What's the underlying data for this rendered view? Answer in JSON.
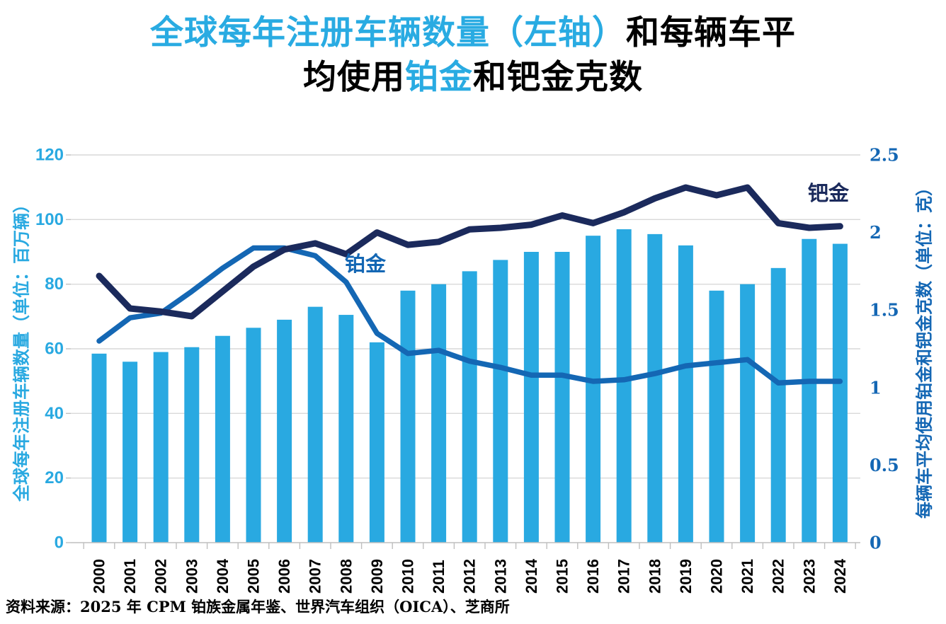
{
  "title": {
    "line1": [
      {
        "text": "全球每年注册车辆数量（左轴）",
        "color": "accent"
      },
      {
        "text": "和每辆车平",
        "color": "black"
      }
    ],
    "line2": [
      {
        "text": "均使用",
        "color": "black"
      },
      {
        "text": "铂金",
        "color": "accent"
      },
      {
        "text": "和钯金克数",
        "color": "black"
      }
    ]
  },
  "source": "资料来源：2025 年 CPM 铂族金属年鉴、世界汽车组织（OICA）、芝商所",
  "colors": {
    "bar": "#29A9E1",
    "platinum_line": "#1467B4",
    "palladium_line": "#1B2A5C",
    "left_axis_text": "#29A9E1",
    "right_axis_text": "#1467B4",
    "title_accent": "#29ABE2",
    "title_black": "#000000",
    "grid": "#D9D9D9",
    "axis_line": "#BFBFBF"
  },
  "left_axis": {
    "title": "全球每年注册车辆数量（单位：百万辆）",
    "ticks": [
      "0",
      "20",
      "40",
      "60",
      "80",
      "100",
      "120"
    ],
    "min": 0,
    "max": 120,
    "step": 20
  },
  "right_axis": {
    "title": "每辆车平均使用铂金和钯金克数（单位：克）",
    "ticks": [
      "0",
      "0.5",
      "1",
      "1.5",
      "2",
      "2.5"
    ],
    "min": 0,
    "max": 2.5,
    "step": 0.5
  },
  "series_labels": {
    "platinum": "铂金",
    "palladium": "钯金"
  },
  "chart_data": {
    "type": "combo-bar-line",
    "grid": true,
    "left_ylim": [
      0,
      120
    ],
    "right_ylim": [
      0,
      2.5
    ],
    "x": [
      "2000",
      "2001",
      "2002",
      "2003",
      "2004",
      "2005",
      "2006",
      "2007",
      "2008",
      "2009",
      "2010",
      "2011",
      "2012",
      "2013",
      "2014",
      "2015",
      "2016",
      "2017",
      "2018",
      "2019",
      "2020",
      "2021",
      "2022",
      "2023",
      "2024"
    ],
    "bar_series": {
      "name": "全球每年注册车辆数量（单位：百万辆）",
      "axis": "left",
      "values": [
        58.5,
        56,
        59,
        60.5,
        64,
        66.5,
        69,
        73,
        70.5,
        62,
        78,
        80,
        84,
        87.5,
        90,
        90,
        95,
        97,
        95.5,
        92,
        78,
        80,
        85,
        94,
        92.5
      ]
    },
    "line_series": [
      {
        "name": "铂金",
        "axis": "right",
        "values": [
          1.3,
          1.45,
          1.48,
          1.62,
          1.77,
          1.9,
          1.9,
          1.85,
          1.68,
          1.35,
          1.22,
          1.24,
          1.17,
          1.13,
          1.08,
          1.08,
          1.04,
          1.05,
          1.09,
          1.14,
          1.16,
          1.18,
          1.03,
          1.04,
          1.04
        ]
      },
      {
        "name": "钯金",
        "axis": "right",
        "values": [
          1.72,
          1.51,
          1.49,
          1.46,
          1.62,
          1.78,
          1.89,
          1.93,
          1.86,
          2.0,
          1.92,
          1.94,
          2.02,
          2.03,
          2.05,
          2.11,
          2.06,
          2.13,
          2.22,
          2.29,
          2.24,
          2.29,
          2.06,
          2.03,
          2.04
        ]
      }
    ]
  }
}
